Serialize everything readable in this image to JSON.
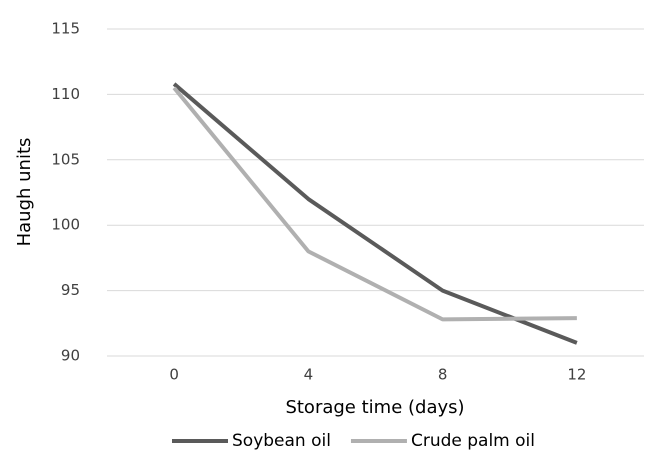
{
  "chart_data": {
    "type": "line",
    "x_label": "Storage time (days)",
    "y_label": "Haugh units",
    "categories": [
      "0",
      "4",
      "8",
      "12"
    ],
    "series": [
      {
        "name": "Soybean oil",
        "color": "#5a5a5a",
        "values": [
          110.8,
          102,
          95,
          91
        ]
      },
      {
        "name": "Crude palm oil",
        "color": "#b0b0b0",
        "values": [
          110.5,
          98,
          92.8,
          92.9
        ]
      }
    ],
    "ylim": [
      90,
      115
    ],
    "yticks": [
      90,
      95,
      100,
      105,
      110,
      115
    ],
    "grid": true,
    "legend": "bottom"
  }
}
